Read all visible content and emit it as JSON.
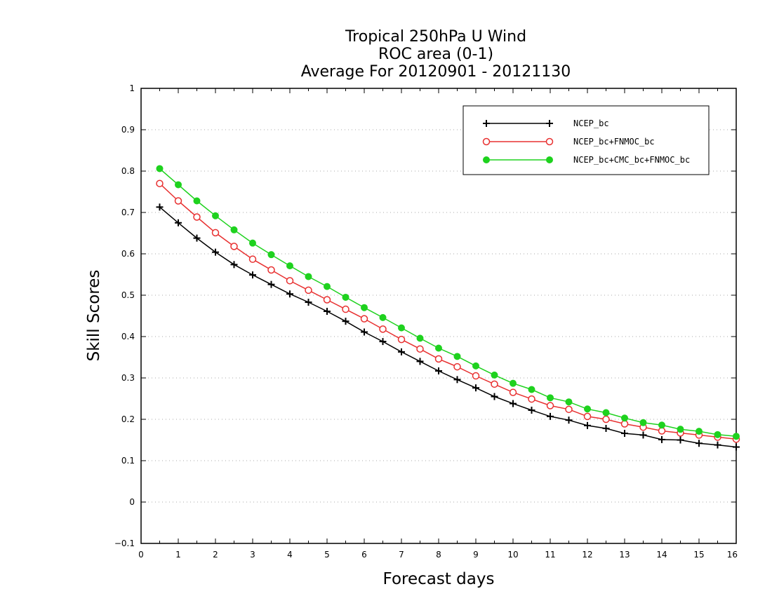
{
  "chart_data": {
    "type": "line",
    "title_lines": [
      "Tropical 250hPa U Wind",
      "ROC area (0-1)",
      "Average For 20120901 - 20121130"
    ],
    "xlabel": "Forecast days",
    "ylabel": "Skill Scores",
    "xlim": [
      0,
      16
    ],
    "ylim": [
      -0.1,
      1
    ],
    "xticks": [
      "0",
      "1",
      "2",
      "3",
      "4",
      "5",
      "6",
      "7",
      "8",
      "9",
      "10",
      "11",
      "12",
      "13",
      "14",
      "15",
      "16"
    ],
    "yticks": [
      "−0.1",
      "0",
      "0.1",
      "0.2",
      "0.3",
      "0.4",
      "0.5",
      "0.6",
      "0.7",
      "0.8",
      "0.9",
      "1"
    ],
    "grid": "horizontal dotted",
    "legend_position": "top-right",
    "x": [
      0.5,
      1,
      1.5,
      2,
      2.5,
      3,
      3.5,
      4,
      4.5,
      5,
      5.5,
      6,
      6.5,
      7,
      7.5,
      8,
      8.5,
      9,
      9.5,
      10,
      10.5,
      11,
      11.5,
      12,
      12.5,
      13,
      13.5,
      14,
      14.5,
      15,
      15.5,
      16
    ],
    "series": [
      {
        "name": "NCEP_bc",
        "color": "#000000",
        "marker": "plus",
        "values": [
          0.713,
          0.675,
          0.638,
          0.604,
          0.574,
          0.549,
          0.526,
          0.503,
          0.483,
          0.461,
          0.437,
          0.411,
          0.388,
          0.363,
          0.34,
          0.317,
          0.296,
          0.276,
          0.255,
          0.238,
          0.222,
          0.207,
          0.198,
          0.185,
          0.178,
          0.166,
          0.162,
          0.151,
          0.15,
          0.142,
          0.138,
          0.133
        ]
      },
      {
        "name": "NCEP_bc+FNMOC_bc",
        "color": "#e83030",
        "marker": "open-circle",
        "values": [
          0.77,
          0.728,
          0.689,
          0.651,
          0.618,
          0.587,
          0.561,
          0.535,
          0.512,
          0.489,
          0.466,
          0.443,
          0.418,
          0.393,
          0.37,
          0.346,
          0.327,
          0.305,
          0.285,
          0.265,
          0.249,
          0.233,
          0.224,
          0.207,
          0.2,
          0.189,
          0.181,
          0.172,
          0.167,
          0.162,
          0.157,
          0.152
        ]
      },
      {
        "name": "NCEP_bc+CMC_bc+FNMOC_bc",
        "color": "#1ed21e",
        "marker": "filled-circle",
        "values": [
          0.806,
          0.767,
          0.728,
          0.692,
          0.658,
          0.626,
          0.598,
          0.571,
          0.545,
          0.521,
          0.495,
          0.47,
          0.446,
          0.421,
          0.396,
          0.372,
          0.352,
          0.329,
          0.307,
          0.287,
          0.272,
          0.252,
          0.242,
          0.225,
          0.216,
          0.203,
          0.192,
          0.186,
          0.176,
          0.171,
          0.163,
          0.159
        ]
      }
    ]
  }
}
